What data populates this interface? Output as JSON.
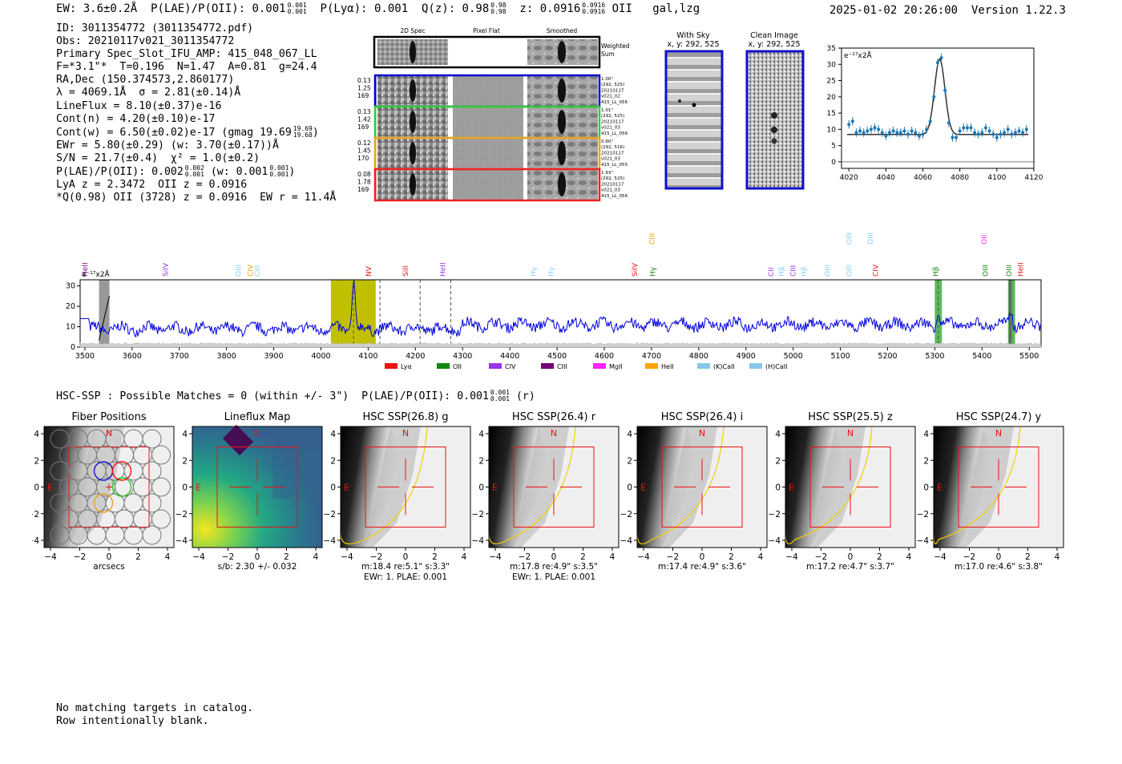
{
  "header": {
    "left_ew": "EW: 3.6±0.2Å",
    "left_plae": "P(LAE)/P(OII): 0.001",
    "left_plae_hi": "0.001",
    "left_plae_lo": "0.001",
    "left_plya": "P(Lyα): 0.001",
    "left_qz": "Q(z): 0.98",
    "left_qz_hi": "0.98",
    "left_qz_lo": "0.98",
    "left_z": "z: 0.0916",
    "left_z_hi": "0.0916",
    "left_z_lo": "0.0916",
    "left_line": "OII",
    "left_cls": "gal,lzg",
    "right_datetime": "2025-01-02 20:26:00",
    "right_version": "Version 1.22.3"
  },
  "info": {
    "id": "ID: 3011354772 (3011354772.pdf)",
    "obs": "Obs: 20210117v021_3011354772",
    "primary": "Primary Spec_Slot_IFU_AMP: 415_048_067_LL",
    "params": "F=*3.1\"*  T=0.196  N=1.47  A=0.81  g=24.4",
    "radec": "RA,Dec (150.374573,2.860177)",
    "lambda": "λ = 4069.1Å  σ = 2.81(±0.14)Å",
    "lineflux": "LineFlux = 8.10(±0.37)e-16",
    "contn": "Cont(n) = 4.20(±0.10)e-17",
    "contw": "Cont(w) = 6.50(±0.02)e-17 (gmag 19.69",
    "contw_hi": "19.69",
    "contw_lo": "19.68",
    "ewr": "EWr = 5.80(±0.29) (w: 3.70(±0.17))Å",
    "sn": "S/N = 21.7(±0.4)  χ² = 1.0(±0.2)",
    "plae": "P(LAE)/P(OII): 0.002",
    "plae_hi": "0.002",
    "plae_lo": "0.001",
    "plae_w": "(w: 0.001",
    "plae_w_hi": "0.001",
    "plae_w_lo": "0.001",
    "lya": "LyA z = 2.3472  OII z = 0.0916",
    "q": "*Q(0.98) OII (3728) z = 0.0916  EW r = 11.4Å"
  },
  "cutouts": {
    "col_labels": [
      "2D Spec",
      "Pixel Flat",
      "Smoothed"
    ],
    "weighted_label": "Weighted Sum",
    "rows": [
      {
        "left": [
          "0.13",
          "1.25",
          "169"
        ],
        "right": [
          "1.00\"",
          "(292, 525)",
          "20210117",
          "v021_02",
          "415_LL_056"
        ],
        "color": "#0000cc"
      },
      {
        "left": [
          "0.13",
          "1.42",
          "169"
        ],
        "right": [
          "1.01\"",
          "(292, 525)",
          "20210117",
          "v021_03",
          "415_LL_056"
        ],
        "color": "#33cc33"
      },
      {
        "left": [
          "0.12",
          "1.45",
          "170"
        ],
        "right": [
          "0.60\"",
          "(292, 516)",
          "20210117",
          "v021_03",
          "415_LL_055"
        ],
        "color": "#f0a020"
      },
      {
        "left": [
          "0.08",
          "1.78",
          "169"
        ],
        "right": [
          "1.93\"",
          "(292, 525)",
          "20210117",
          "v021_03",
          "415_LL_056"
        ],
        "color": "#ee2222"
      }
    ]
  },
  "sky": {
    "with_sky_title": "With Sky",
    "with_sky_sub": "x, y: 292, 525",
    "clean_title": "Clean Image",
    "clean_sub": "x, y: 292, 525"
  },
  "chart_data": [
    {
      "type": "scatter",
      "title": "",
      "ylabel": "e⁻¹⁷x2Å",
      "xlim": [
        4016,
        4120
      ],
      "ylim": [
        -2,
        35
      ],
      "xticks": [
        4020,
        4040,
        4060,
        4080,
        4100,
        4120
      ],
      "yticks": [
        0,
        5,
        10,
        15,
        20,
        25,
        30,
        35
      ],
      "points_x": [
        4020,
        4022,
        4024,
        4026,
        4028,
        4030,
        4032,
        4034,
        4036,
        4038,
        4040,
        4042,
        4044,
        4046,
        4048,
        4050,
        4052,
        4054,
        4056,
        4058,
        4060,
        4062,
        4064,
        4066,
        4068,
        4070,
        4072,
        4074,
        4076,
        4078,
        4080,
        4082,
        4084,
        4086,
        4088,
        4090,
        4092,
        4094,
        4096,
        4098,
        4100,
        4102,
        4104,
        4106,
        4108,
        4110,
        4112,
        4114,
        4116
      ],
      "points_y": [
        11.5,
        12.5,
        9,
        9.5,
        9,
        9.5,
        10,
        10.5,
        10,
        9,
        8,
        9,
        9.5,
        9,
        9,
        9.5,
        8.5,
        9.5,
        9,
        8,
        8.5,
        10,
        12.5,
        20,
        30.5,
        32,
        22,
        12,
        7.5,
        7.5,
        9.5,
        10.5,
        10.5,
        10.5,
        9,
        8.5,
        9,
        10.5,
        9.5,
        8.5,
        7.5,
        8.5,
        9,
        10,
        8.5,
        9,
        9.5,
        9,
        10
      ],
      "fit": {
        "continuum": 8.4,
        "center": 4069.1,
        "sigma": 2.81,
        "peak": 23.2
      }
    },
    {
      "type": "line",
      "ylabel": "e⁻¹⁷x2Å",
      "xlim": [
        3490,
        5525
      ],
      "ylim": [
        0,
        33
      ],
      "xticks": [
        3500,
        3600,
        3700,
        3800,
        3900,
        4000,
        4100,
        4200,
        4300,
        4400,
        4500,
        4600,
        4700,
        4800,
        4900,
        5000,
        5100,
        5200,
        5300,
        5400,
        5500
      ],
      "yticks": [
        0,
        10,
        20,
        30
      ],
      "legend": [
        "Lyα",
        "OII",
        "CIV",
        "CIII",
        "MgII",
        "HeII",
        "(K)CaII",
        "(H)CaII"
      ],
      "legend_colors": [
        "#ee1111",
        "#118811",
        "#9933ee",
        "#770077",
        "#ff22ff",
        "#ffa500",
        "#87c8ea",
        "#87c8ea"
      ]
    }
  ],
  "line_labels": [
    {
      "text": "HeII",
      "color": "#800080",
      "x": 3505,
      "row": 1
    },
    {
      "text": "SiIV",
      "color": "#9933ee",
      "x": 3676,
      "row": 1
    },
    {
      "text": "OIII",
      "color": "#87cefa",
      "x": 3830,
      "row": 1
    },
    {
      "text": "CIV",
      "color": "#e8a000",
      "x": 3856,
      "row": 1
    },
    {
      "text": "CIII",
      "color": "#87cefa",
      "x": 3870,
      "row": 1
    },
    {
      "text": "NV",
      "color": "#ee1111",
      "x": 4106,
      "row": 1
    },
    {
      "text": "SiII",
      "color": "#ee1111",
      "x": 4184,
      "row": 1
    },
    {
      "text": "HeII",
      "color": "#9933ee",
      "x": 4263,
      "row": 1
    },
    {
      "text": "Hγ",
      "color": "#87cefa",
      "x": 4455,
      "row": 1
    },
    {
      "text": "Hγ",
      "color": "#87cefa",
      "x": 4492,
      "row": 1
    },
    {
      "text": "SiIV",
      "color": "#ee1111",
      "x": 4670,
      "row": 1
    },
    {
      "text": "CIII",
      "color": "#e8a000",
      "x": 4706,
      "row": 0
    },
    {
      "text": "Hγ",
      "color": "#118811",
      "x": 4708,
      "row": 1
    },
    {
      "text": "CII",
      "color": "#9933ee",
      "x": 4958,
      "row": 1
    },
    {
      "text": "Hβ",
      "color": "#87cefa",
      "x": 4980,
      "row": 1
    },
    {
      "text": "CIII",
      "color": "#9933ee",
      "x": 5005,
      "row": 1
    },
    {
      "text": "Hβ",
      "color": "#87cefa",
      "x": 5028,
      "row": 1
    },
    {
      "text": "OIII",
      "color": "#87cefa",
      "x": 5078,
      "row": 1
    },
    {
      "text": "OIII",
      "color": "#87cefa",
      "x": 5124,
      "row": 0
    },
    {
      "text": "OIII",
      "color": "#87cefa",
      "x": 5124,
      "row": 1
    },
    {
      "text": "OIII",
      "color": "#87cefa",
      "x": 5169,
      "row": 0
    },
    {
      "text": "CIV",
      "color": "#ee1111",
      "x": 5180,
      "row": 1
    },
    {
      "text": "Hβ",
      "color": "#118811",
      "x": 5307,
      "row": 1
    },
    {
      "text": "OII",
      "color": "#ff22ff",
      "x": 5410,
      "row": 0
    },
    {
      "text": "OIII",
      "color": "#118811",
      "x": 5412,
      "row": 1
    },
    {
      "text": "OIII",
      "color": "#118811",
      "x": 5462,
      "row": 1
    },
    {
      "text": "HeII",
      "color": "#ee1111",
      "x": 5487,
      "row": 1
    }
  ],
  "hsc": {
    "summary": "HSC-SSP : Possible Matches = 0 (within +/- 3\")  P(LAE)/P(OII): 0.001",
    "summary_hi": "0.001",
    "summary_lo": "0.001",
    "summary_tail": "(r)",
    "panels": [
      {
        "title": "Fiber Positions",
        "captions": [
          "arcsecs"
        ]
      },
      {
        "title": "Lineflux Map",
        "captions": [
          "s/b: 2.30 +/- 0.032"
        ]
      },
      {
        "title": "HSC SSP(26.8) g",
        "captions": [
          "m:18.4  re:5.1\"  s:3.3\"",
          "EWr: 1. PLAE: 0.001"
        ]
      },
      {
        "title": "HSC SSP(26.4) r",
        "captions": [
          "m:17.8  re:4.9\"  s:3.5\"",
          "EWr: 1. PLAE: 0.001"
        ]
      },
      {
        "title": "HSC SSP(26.4) i",
        "captions": [
          "m:17.4  re:4.9\"  s:3.6\""
        ]
      },
      {
        "title": "HSC SSP(25.5) z",
        "captions": [
          "m:17.2  re:4.7\"  s:3.7\""
        ]
      },
      {
        "title": "HSC SSP(24.7) y",
        "captions": [
          "m:17.0  re:4.6\"  s:3.8\""
        ]
      }
    ],
    "xticks": [
      "−4",
      "−2",
      "0",
      "2",
      "4"
    ],
    "yticks": [
      "4",
      "2",
      "0",
      "−2",
      "−4"
    ],
    "north": "N",
    "east": "E"
  },
  "footer": {
    "line1": "No matching targets in catalog.",
    "line2": "Row intentionally blank."
  }
}
